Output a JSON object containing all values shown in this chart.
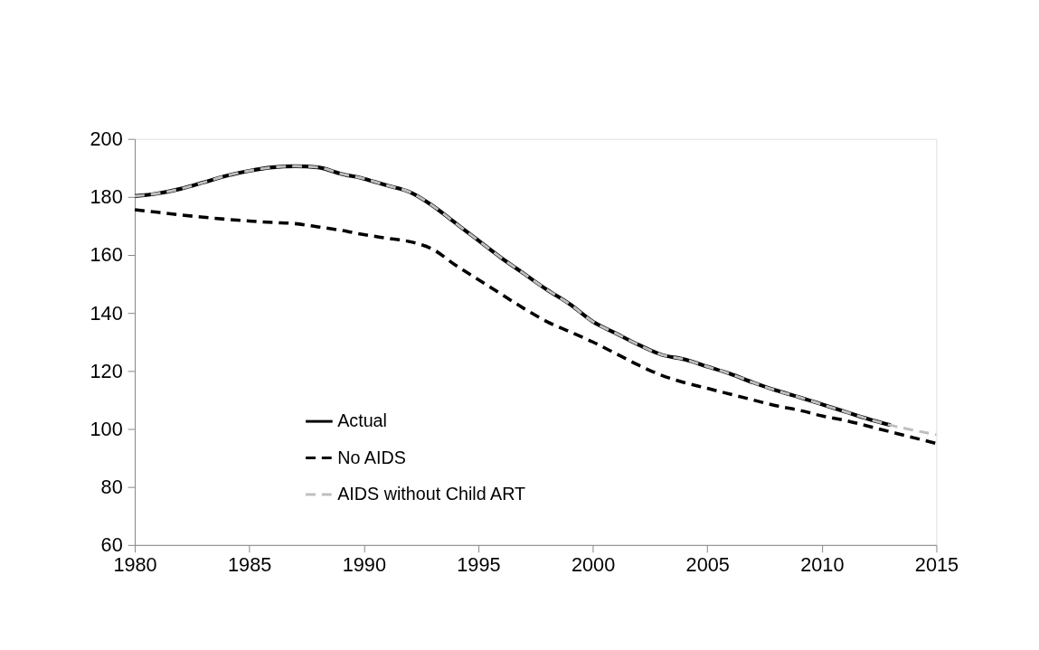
{
  "chart_data": {
    "type": "line",
    "xlim": [
      1980,
      2015
    ],
    "xticks": [
      1980,
      1985,
      1990,
      1995,
      2000,
      2005,
      2010,
      2015
    ],
    "ylim": [
      60,
      200
    ],
    "yticks": [
      60,
      80,
      100,
      120,
      140,
      160,
      180,
      200
    ],
    "grid": false,
    "legend": "bottom left",
    "marker": "none",
    "series": [
      {
        "name": "Actual",
        "color": "#000000",
        "line_style": "solid",
        "x": [
          1980,
          1981,
          1982,
          1983,
          1984,
          1985,
          1986,
          1987,
          1988,
          1989,
          1990,
          1991,
          1992,
          1993,
          1994,
          1995,
          1996,
          1997,
          1998,
          1999,
          2000,
          2001,
          2002,
          2003,
          2004,
          2005,
          2006,
          2007,
          2008,
          2009,
          2010,
          2011,
          2012,
          2013
        ],
        "values": [
          180.3,
          181.2,
          182.8,
          185,
          187.3,
          189,
          190.2,
          190.6,
          190.2,
          188,
          186.3,
          184,
          181.7,
          177,
          171,
          165,
          159,
          153.5,
          148,
          143,
          137,
          133,
          129,
          125.6,
          124,
          121.5,
          119,
          116,
          113.3,
          111,
          108.5,
          106,
          103.5,
          101.3
        ]
      },
      {
        "name": "No AIDS",
        "color": "#000000",
        "line_style": "dashed",
        "x": [
          1980,
          1981,
          1982,
          1983,
          1984,
          1985,
          1986,
          1987,
          1988,
          1989,
          1990,
          1991,
          1992,
          1993,
          1994,
          1995,
          1996,
          1997,
          1998,
          1999,
          2000,
          2001,
          2002,
          2003,
          2004,
          2005,
          2006,
          2007,
          2008,
          2009,
          2010,
          2011,
          2012,
          2013,
          2014,
          2015
        ],
        "values": [
          175.6,
          174.7,
          173.8,
          173,
          172.3,
          171.7,
          171.2,
          170.8,
          169.7,
          168.5,
          167,
          165.8,
          164.6,
          162,
          156.5,
          151.5,
          146.5,
          141.5,
          137,
          133.5,
          130,
          126,
          122,
          118.5,
          116,
          114,
          112,
          110,
          108,
          106.5,
          104.5,
          103,
          101,
          99,
          97,
          95
        ]
      },
      {
        "name": "AIDS without Child ART",
        "color": "#bfbfbf",
        "line_style": "dashed",
        "x": [
          1980,
          1981,
          1982,
          1983,
          1984,
          1985,
          1986,
          1987,
          1988,
          1989,
          1990,
          1991,
          1992,
          1993,
          1994,
          1995,
          1996,
          1997,
          1998,
          1999,
          2000,
          2001,
          2002,
          2003,
          2004,
          2005,
          2006,
          2007,
          2008,
          2009,
          2010,
          2011,
          2012,
          2013,
          2014,
          2015
        ],
        "values": [
          180.3,
          181.2,
          182.8,
          185,
          187.3,
          189,
          190.2,
          190.6,
          190.2,
          188,
          186.3,
          184,
          181.7,
          177,
          171,
          165,
          159,
          153.5,
          148,
          143,
          137,
          133,
          129,
          125.6,
          124,
          121.5,
          119,
          116,
          113.3,
          111,
          108.5,
          106,
          103.5,
          101.3,
          99.6,
          98
        ]
      }
    ]
  }
}
